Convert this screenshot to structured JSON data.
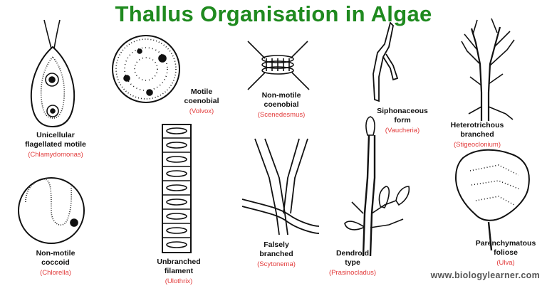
{
  "title": "Thallus Organisation in Algae",
  "colors": {
    "title": "#1f8a1f",
    "scientific": "#e23b3b",
    "ink": "#111111",
    "footer": "#555555"
  },
  "items": [
    {
      "name": "Unicellular\nflagellated motile",
      "scientific": "(Chlamydomonas)"
    },
    {
      "name": "Motile\ncoenobial",
      "scientific": "(Volvox)"
    },
    {
      "name": "Non-motile\ncoenobial",
      "scientific": "(Scenedesmus)"
    },
    {
      "name": "Siphonaceous\nform",
      "scientific": "(Vaucheria)"
    },
    {
      "name": "Heterotrichous\nbranched",
      "scientific": "(Stigeoclonium)"
    },
    {
      "name": "Non-motile\ncoccoid",
      "scientific": "(Chlorella)"
    },
    {
      "name": "Unbranched\nfilament",
      "scientific": "(Ulothrix)"
    },
    {
      "name": "Falsely\nbranched",
      "scientific": "(Scytonema)"
    },
    {
      "name": "Dendroid\ntype",
      "scientific": "(Prasinocladus)"
    },
    {
      "name": "Parenchymatous\nfoliose",
      "scientific": "(Ulva)"
    }
  ],
  "footer": "www.biologylearner.com"
}
